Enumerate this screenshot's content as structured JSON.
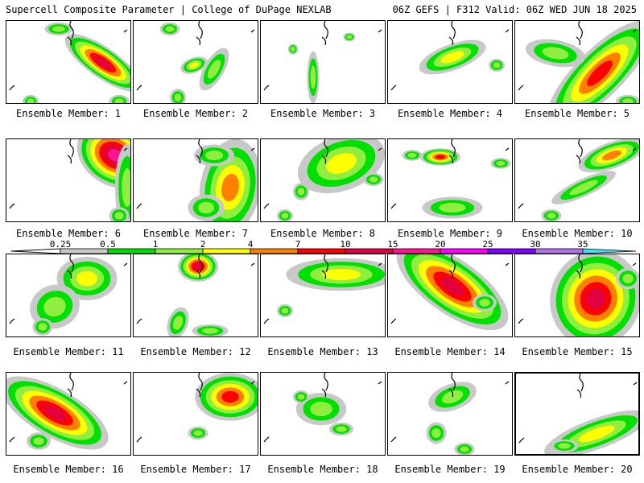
{
  "header": {
    "title": "Supercell Composite Parameter | College of DuPage NEXLAB",
    "run_info": "06Z GEFS | F312 Valid: 06Z WED JUN 18 2025"
  },
  "caption_prefix": "Ensemble Member:",
  "members": [
    {
      "number": 1,
      "label": "Ensemble Member: 1",
      "max_level": "10"
    },
    {
      "number": 2,
      "label": "Ensemble Member: 2",
      "max_level": "2"
    },
    {
      "number": 3,
      "label": "Ensemble Member: 3",
      "max_level": "1"
    },
    {
      "number": 4,
      "label": "Ensemble Member: 4",
      "max_level": "2"
    },
    {
      "number": 5,
      "label": "Ensemble Member: 5",
      "max_level": "7"
    },
    {
      "number": 6,
      "label": "Ensemble Member: 6",
      "max_level": "15"
    },
    {
      "number": 7,
      "label": "Ensemble Member: 7",
      "max_level": "4"
    },
    {
      "number": 8,
      "label": "Ensemble Member: 8",
      "max_level": "2"
    },
    {
      "number": 9,
      "label": "Ensemble Member: 9",
      "max_level": "7"
    },
    {
      "number": 10,
      "label": "Ensemble Member: 10",
      "max_level": "4"
    },
    {
      "number": 11,
      "label": "Ensemble Member: 11",
      "max_level": "2"
    },
    {
      "number": 12,
      "label": "Ensemble Member: 12",
      "max_level": "10"
    },
    {
      "number": 13,
      "label": "Ensemble Member: 13",
      "max_level": "2"
    },
    {
      "number": 14,
      "label": "Ensemble Member: 14",
      "max_level": "10"
    },
    {
      "number": 15,
      "label": "Ensemble Member: 15",
      "max_level": "10"
    },
    {
      "number": 16,
      "label": "Ensemble Member: 16",
      "max_level": "10"
    },
    {
      "number": 17,
      "label": "Ensemble Member: 17",
      "max_level": "7"
    },
    {
      "number": 18,
      "label": "Ensemble Member: 18",
      "max_level": "1"
    },
    {
      "number": 19,
      "label": "Ensemble Member: 19",
      "max_level": "1"
    },
    {
      "number": 20,
      "label": "Ensemble Member: 20",
      "max_level": "2",
      "highlighted": true
    }
  ],
  "legend": {
    "thresholds": [
      "0.25",
      "0.5",
      "1",
      "2",
      "4",
      "7",
      "10",
      "15",
      "20",
      "25",
      "30",
      "35"
    ],
    "colors": [
      "#c8c8c8",
      "#00e000",
      "#90ee40",
      "#ffff00",
      "#ff8000",
      "#ff0000",
      "#e00040",
      "#ff1493",
      "#ff00ff",
      "#8000ff",
      "#b070e8",
      "#40e0f0"
    ]
  },
  "colors": {
    "background": "#ffffff",
    "border": "#000000",
    "coastline": "#000000"
  }
}
